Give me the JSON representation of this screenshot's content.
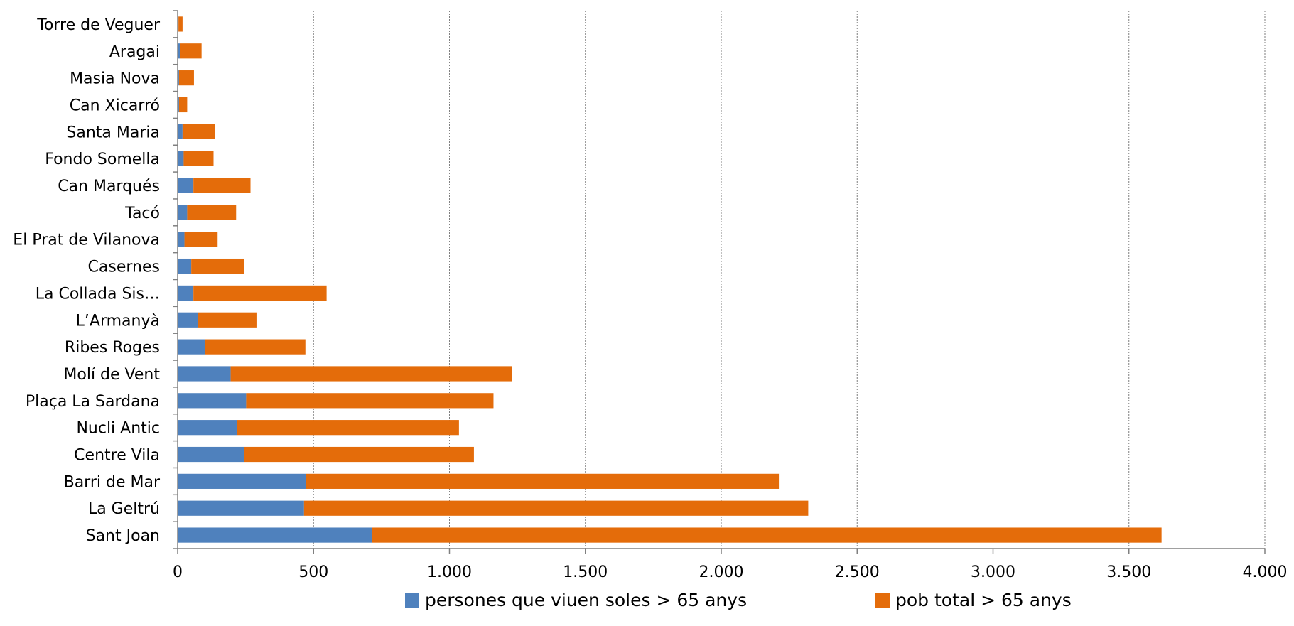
{
  "chart_data": {
    "type": "bar",
    "orientation": "horizontal",
    "stacked": true,
    "categories": [
      "Torre de Veguer",
      "Aragai",
      "Masia Nova",
      "Can Xicarró",
      "Santa Maria",
      "Fondo Somella",
      "Can Marqués",
      "Tacó",
      "El Prat de Vilanova",
      "Casernes",
      "La Collada Sis…",
      "L’Armanyà",
      "Ribes Roges",
      "Molí de Vent",
      "Plaça La Sardana",
      "Nucli Antic",
      "Centre Vila",
      "Barri de Mar",
      "La Geltrú",
      "Sant Joan"
    ],
    "series": [
      {
        "name": "persones que viuen soles > 65 anys",
        "color": "#4f81bd",
        "values": [
          3,
          8,
          5,
          5,
          18,
          22,
          58,
          35,
          25,
          50,
          58,
          75,
          100,
          195,
          252,
          218,
          245,
          472,
          465,
          715
        ]
      },
      {
        "name": "pob total > 65 anys",
        "color": "#e46c0a",
        "values": [
          15,
          80,
          55,
          30,
          120,
          110,
          210,
          180,
          122,
          195,
          490,
          215,
          370,
          1035,
          910,
          817,
          845,
          1740,
          1855,
          2905
        ]
      }
    ],
    "xlim": [
      0,
      4000
    ],
    "xticks": [
      0,
      500,
      1000,
      1500,
      2000,
      2500,
      3000,
      3500,
      4000
    ],
    "xtick_labels": [
      "0",
      "500",
      "1.000",
      "1.500",
      "2.000",
      "2.500",
      "3.000",
      "3.500",
      "4.000"
    ],
    "grid": "vertical dotted",
    "legend_position": "bottom",
    "title": "",
    "xlabel": "",
    "ylabel": ""
  }
}
